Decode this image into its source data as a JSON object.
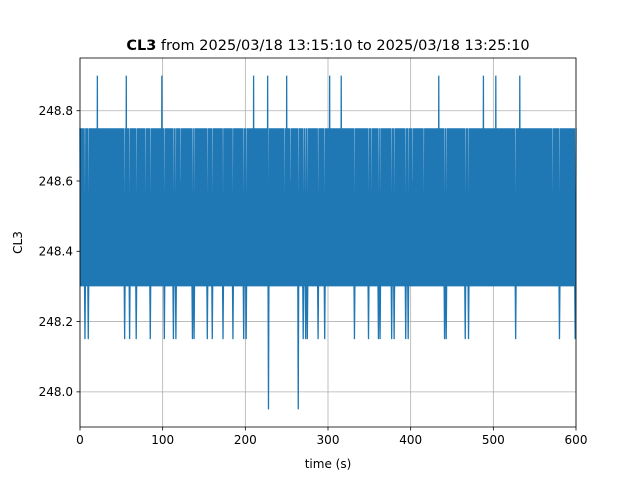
{
  "chart_data": {
    "type": "line",
    "title": {
      "variable": "CL3",
      "rest": " from 2025/03/18 13:15:10 to 2025/03/18 13:25:10"
    },
    "xlabel": "time (s)",
    "ylabel": "CL3",
    "xlim": [
      0,
      600
    ],
    "ylim": [
      247.9,
      248.95
    ],
    "x_ticks": [
      0,
      100,
      200,
      300,
      400,
      500,
      600
    ],
    "y_ticks": [
      248.0,
      248.2,
      248.4,
      248.6,
      248.8
    ],
    "y_tick_labels": [
      "248.0",
      "248.2",
      "248.4",
      "248.6",
      "248.8"
    ],
    "grid": true,
    "series": [
      {
        "color": "#1f77b4",
        "x_start": 0,
        "x_end": 600,
        "sample_interval": 0.5,
        "band": {
          "low": 248.3,
          "high": 248.75
        },
        "spikes_high": [
          {
            "x": 21,
            "y": 248.9
          },
          {
            "x": 56,
            "y": 248.9
          },
          {
            "x": 99,
            "y": 248.9
          },
          {
            "x": 210,
            "y": 248.9
          },
          {
            "x": 227,
            "y": 248.9
          },
          {
            "x": 250,
            "y": 248.9
          },
          {
            "x": 302,
            "y": 248.9
          },
          {
            "x": 316,
            "y": 248.9
          },
          {
            "x": 434,
            "y": 248.9
          },
          {
            "x": 488,
            "y": 248.9
          },
          {
            "x": 503,
            "y": 248.9
          },
          {
            "x": 532,
            "y": 248.9
          }
        ],
        "spikes_low": [
          {
            "x": 6,
            "y": 248.15
          },
          {
            "x": 10,
            "y": 248.15
          },
          {
            "x": 54,
            "y": 248.15
          },
          {
            "x": 60,
            "y": 248.15
          },
          {
            "x": 68,
            "y": 248.15
          },
          {
            "x": 85,
            "y": 248.15
          },
          {
            "x": 102,
            "y": 248.15
          },
          {
            "x": 113,
            "y": 248.15
          },
          {
            "x": 116,
            "y": 248.15
          },
          {
            "x": 136,
            "y": 248.15
          },
          {
            "x": 138,
            "y": 248.15
          },
          {
            "x": 154,
            "y": 248.15
          },
          {
            "x": 160,
            "y": 248.15
          },
          {
            "x": 173,
            "y": 248.15
          },
          {
            "x": 185,
            "y": 248.15
          },
          {
            "x": 198,
            "y": 248.15
          },
          {
            "x": 201,
            "y": 248.15
          },
          {
            "x": 228,
            "y": 247.95
          },
          {
            "x": 264,
            "y": 247.95
          },
          {
            "x": 270,
            "y": 248.15
          },
          {
            "x": 273,
            "y": 248.15
          },
          {
            "x": 275,
            "y": 248.15
          },
          {
            "x": 288,
            "y": 248.15
          },
          {
            "x": 296,
            "y": 248.15
          },
          {
            "x": 332,
            "y": 248.15
          },
          {
            "x": 349,
            "y": 248.15
          },
          {
            "x": 361,
            "y": 248.15
          },
          {
            "x": 363,
            "y": 248.15
          },
          {
            "x": 377,
            "y": 248.15
          },
          {
            "x": 380,
            "y": 248.15
          },
          {
            "x": 394,
            "y": 248.15
          },
          {
            "x": 397,
            "y": 248.15
          },
          {
            "x": 441,
            "y": 248.15
          },
          {
            "x": 443,
            "y": 248.15
          },
          {
            "x": 466,
            "y": 248.15
          },
          {
            "x": 470,
            "y": 248.15
          },
          {
            "x": 527,
            "y": 248.15
          },
          {
            "x": 580,
            "y": 248.15
          },
          {
            "x": 599,
            "y": 248.15
          }
        ],
        "gaps_bottom": [
          {
            "x": 79,
            "y": 248.45
          },
          {
            "x": 247,
            "y": 248.45
          },
          {
            "x": 353,
            "y": 248.45
          },
          {
            "x": 416,
            "y": 248.45
          },
          {
            "x": 572,
            "y": 248.45
          }
        ],
        "gaps_top": [
          {
            "x": 122,
            "y": 248.6
          },
          {
            "x": 255,
            "y": 248.6
          },
          {
            "x": 402,
            "y": 248.6
          }
        ]
      }
    ]
  }
}
